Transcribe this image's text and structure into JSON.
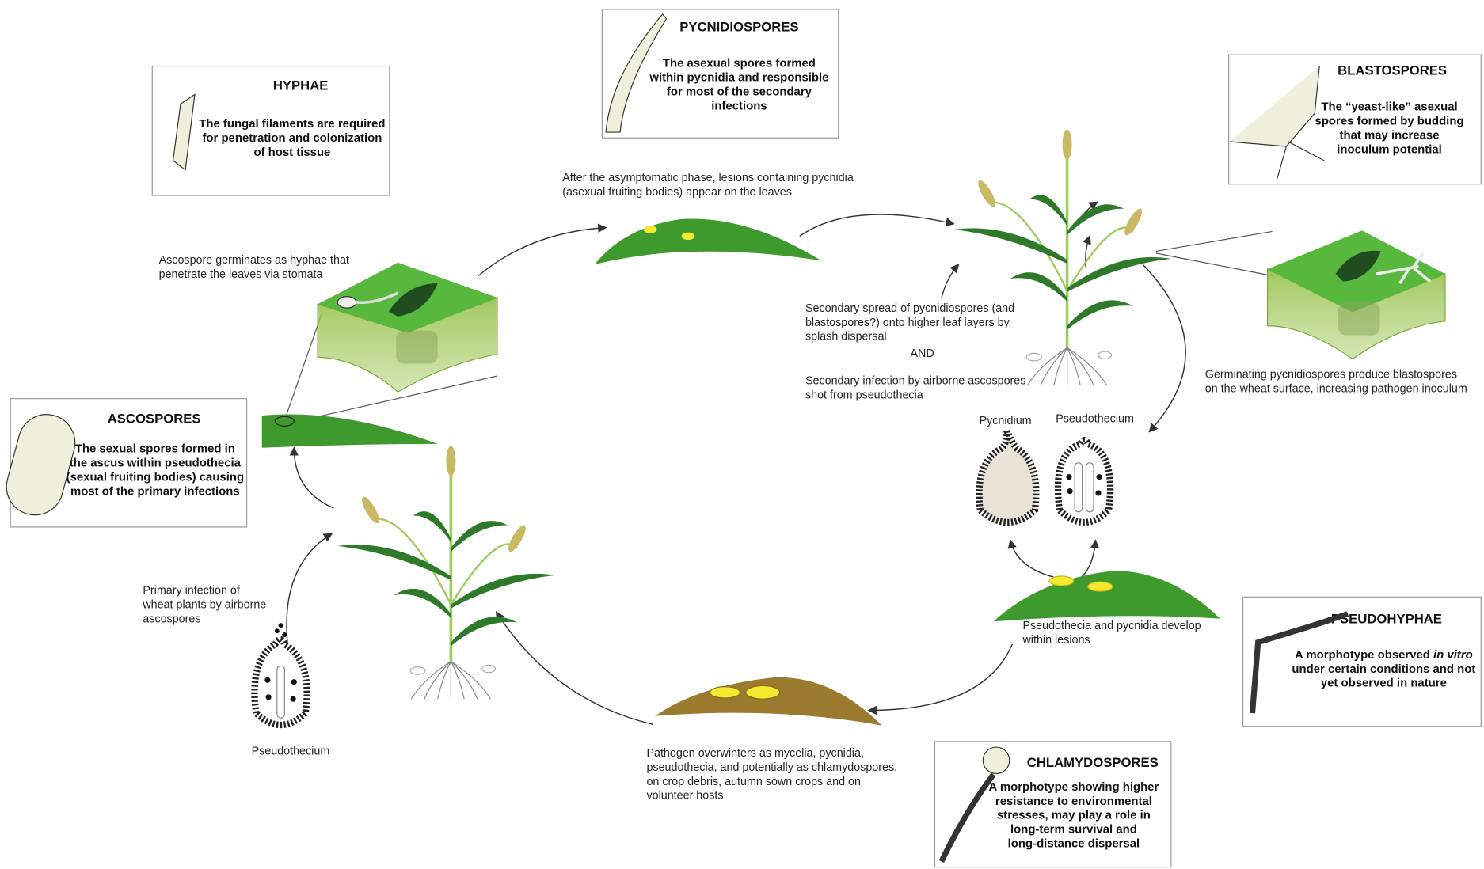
{
  "spore_boxes": [
    {
      "title": "HYPHAE",
      "lines": [
        "The fungal filaments are required",
        "for penetration and colonization",
        "of host tissue"
      ]
    },
    {
      "title": "PYCNIDIOSPORES",
      "lines": [
        "The asexual spores formed",
        "within pycnidia and responsible",
        "for most of the secondary",
        "infections"
      ]
    },
    {
      "title": "BLASTOSPORES",
      "lines": [
        "The “yeast-like” asexual",
        "spores formed by budding",
        "that may increase",
        "inoculum potential"
      ]
    },
    {
      "title": "ASCOSPORES",
      "lines": [
        "The sexual spores formed in",
        "the ascus within pseudothecia",
        "(sexual fruiting bodies) causing",
        "most of the primary infections"
      ]
    },
    {
      "title": "PSEUDOHYPHAE",
      "lines": [
        [
          "A morphotype observed ",
          "in vitro"
        ],
        "under certain conditions and not",
        "yet observed in nature"
      ]
    },
    {
      "title": "CHLAMYDOSPORES",
      "lines": [
        "A morphotype showing higher",
        "resistance to environmental",
        "stresses, may play a role in",
        "long-term survival and",
        "long-distance dispersal"
      ]
    }
  ],
  "captions": [
    {
      "lines": [
        "After the asymptomatic phase, lesions containing pycnidia",
        "(asexual fruiting bodies) appear on the leaves"
      ]
    },
    {
      "lines": [
        "Ascospore germinates as hyphae that",
        "penetrate the leaves via stomata"
      ]
    },
    {
      "lines": [
        "Secondary spread of pycnidiospores (and",
        "blastospores?) onto higher leaf layers by",
        "splash dispersal"
      ]
    },
    {
      "lines": [
        "AND"
      ]
    },
    {
      "lines": [
        "Secondary infection by airborne ascospores",
        "shot from pseudothecia"
      ]
    },
    {
      "lines": [
        "Germinating pycnidiospores produce blastospores",
        "on the wheat surface, increasing pathogen inoculum"
      ]
    },
    {
      "lines": [
        "Primary infection of",
        "wheat plants by airborne",
        "ascospores"
      ]
    },
    {
      "lines": [
        "Pseudothecia and pycnidia develop",
        "within lesions"
      ]
    },
    {
      "lines": [
        "Pathogen overwinters as mycelia, pycnidia,",
        "pseudothecia, and potentially as chlamydospores,",
        "on crop debris, autumn sown crops and on",
        "volunteer hosts"
      ]
    }
  ],
  "structure_labels": [
    "Pycnidium",
    "Pseudothecium",
    "Pseudothecium"
  ]
}
